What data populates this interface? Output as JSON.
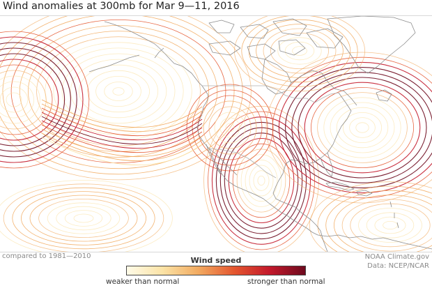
{
  "header": {
    "title": "Wind anomalies at 300mb for Mar 9—11, 2016"
  },
  "map": {
    "description_colors": {
      "boundary": "#8c8c8c",
      "weak": "#fbe9c0",
      "mid": "#f2a75c",
      "strong": "#c41e2a",
      "strongest": "#6e0a1e"
    }
  },
  "footer": {
    "comparison": "compared to 1981—2010",
    "credit_line1": "NOAA Climate.gov",
    "credit_line2": "Data: NCEP/NCAR"
  },
  "legend": {
    "title": "Wind speed",
    "low_label": "weaker than normal",
    "high_label": "stronger than normal",
    "gradient_colors": [
      "#fffbe8",
      "#fbe3a6",
      "#f2ab61",
      "#e4572f",
      "#c3192b",
      "#6e0a1e"
    ]
  }
}
